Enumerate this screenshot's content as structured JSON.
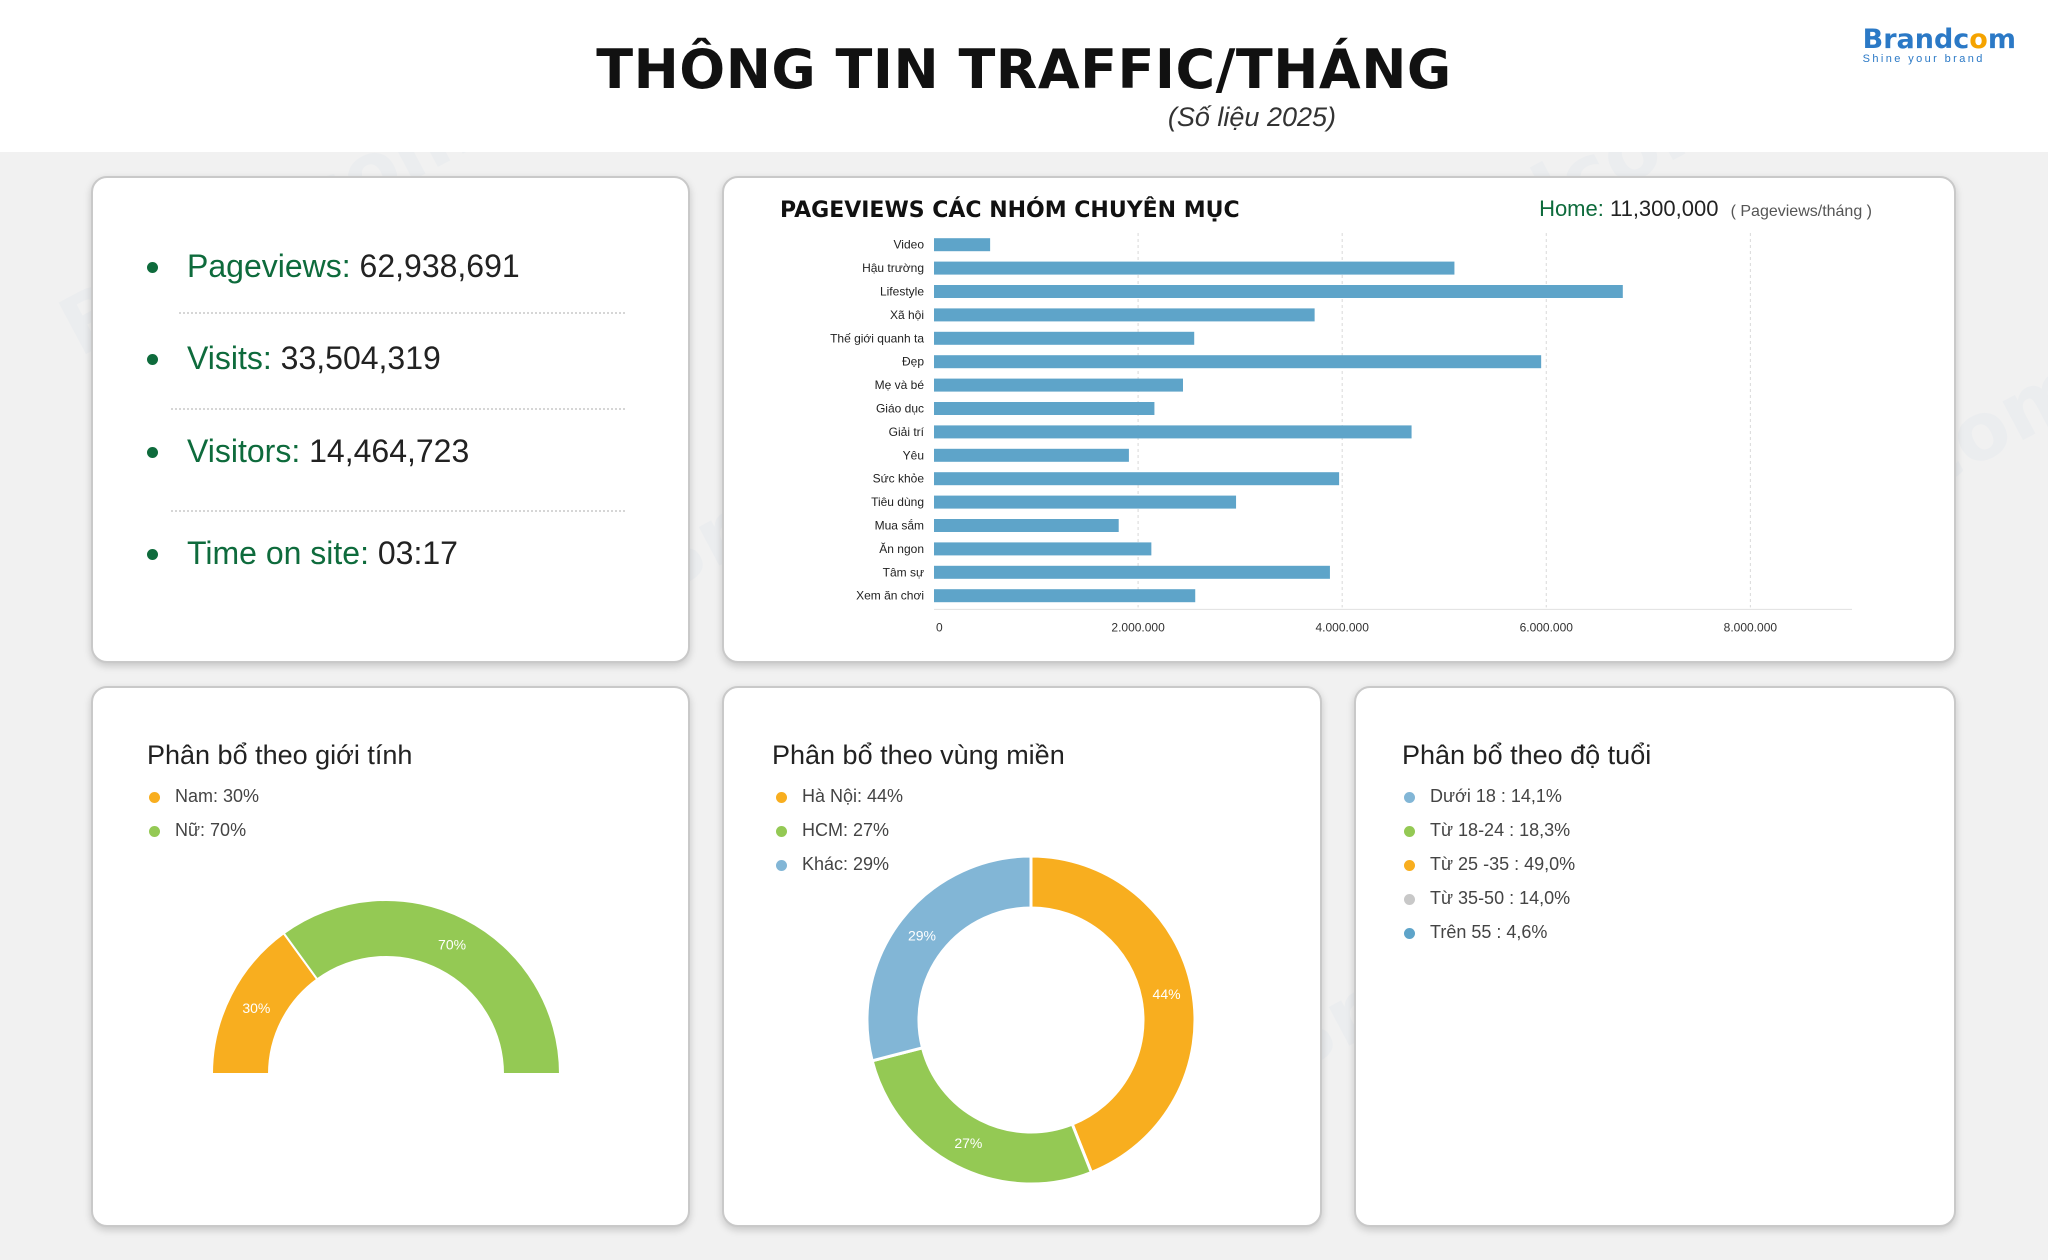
{
  "header": {
    "title": "THÔNG TIN TRAFFIC/THÁNG",
    "subtitle": "(Số liệu 2025)",
    "brand_name_pre": "Brandc",
    "brand_name_o": "o",
    "brand_name_post": "m",
    "brand_tagline": "Shine your brand"
  },
  "stats": [
    {
      "label": "Pageviews:",
      "value": "62,938,691"
    },
    {
      "label": "Visits:",
      "value": "33,504,319"
    },
    {
      "label": "Visitors:",
      "value": "14,464,723"
    },
    {
      "label": "Time on site:",
      "value": "03:17"
    }
  ],
  "colors": {
    "brand_green": "#0e6b3c",
    "bar_blue": "#5ea4c9",
    "orange": "#f8ae1f",
    "green": "#94c954",
    "light_blue": "#82b6d6",
    "gray": "#c8c8c8",
    "blue": "#5ea4c9"
  },
  "pageviews_chart": {
    "home_label": "Home:",
    "home_value": "11,300,000",
    "home_unit": "( Pageviews/tháng )"
  },
  "chart_data": [
    {
      "type": "bar",
      "orientation": "horizontal",
      "title": "PAGEVIEWS CÁC NHÓM CHUYÊN MỤC",
      "categories": [
        "Video",
        "Hậu trường",
        "Lifestyle",
        "Xã hội",
        "Thế giới quanh ta",
        "Đẹp",
        "Mẹ và bé",
        "Giáo dục",
        "Giải trí",
        "Yêu",
        "Sức khỏe",
        "Tiêu dùng",
        "Mua sắm",
        "Ăn ngon",
        "Tâm sự",
        "Xem ăn chơi"
      ],
      "values": [
        550000,
        5100000,
        6750000,
        3730000,
        2550000,
        5950000,
        2440000,
        2160000,
        4680000,
        1910000,
        3970000,
        2960000,
        1810000,
        2130000,
        3880000,
        2560000
      ],
      "xlim": [
        0,
        8800000
      ],
      "xticks": [
        "0",
        "2.000.000",
        "4.000.000",
        "6.000.000",
        "8.000.000"
      ],
      "xtick_values": [
        0,
        2000000,
        4000000,
        6000000,
        8000000
      ],
      "grid": "vertical"
    },
    {
      "type": "pie",
      "variant": "half-donut",
      "title": "Phân bổ theo giới tính",
      "labels": [
        "Nam: 30%",
        "Nữ: 70%"
      ],
      "values": [
        30,
        70
      ],
      "slice_labels": [
        "30%",
        "70%"
      ],
      "colors": [
        "#f8ae1f",
        "#94c954"
      ],
      "legend": "top-left"
    },
    {
      "type": "pie",
      "variant": "donut",
      "title": "Phân bổ theo vùng miền",
      "labels": [
        "Hà Nội: 44%",
        "HCM: 27%",
        "Khác: 29%"
      ],
      "values": [
        44,
        27,
        29
      ],
      "slice_labels": [
        "44%",
        "27%",
        "29%"
      ],
      "colors": [
        "#f8ae1f",
        "#94c954",
        "#82b6d6"
      ],
      "legend": "top-left"
    },
    {
      "type": "pie",
      "title": "Phân bổ theo độ tuổi",
      "labels": [
        "Dưới 18 : 14,1%",
        "Từ 18-24 : 18,3%",
        "Từ 25 -35 : 49,0%",
        "Từ 35-50 : 14,0%",
        "Trên 55 : 4,6%"
      ],
      "values": [
        14.1,
        18.3,
        49.0,
        14.0,
        4.6
      ],
      "colors": [
        "#82b6d6",
        "#94c954",
        "#f8ae1f",
        "#c8c8c8",
        "#5ea4c9"
      ],
      "legend": "top-left"
    }
  ]
}
